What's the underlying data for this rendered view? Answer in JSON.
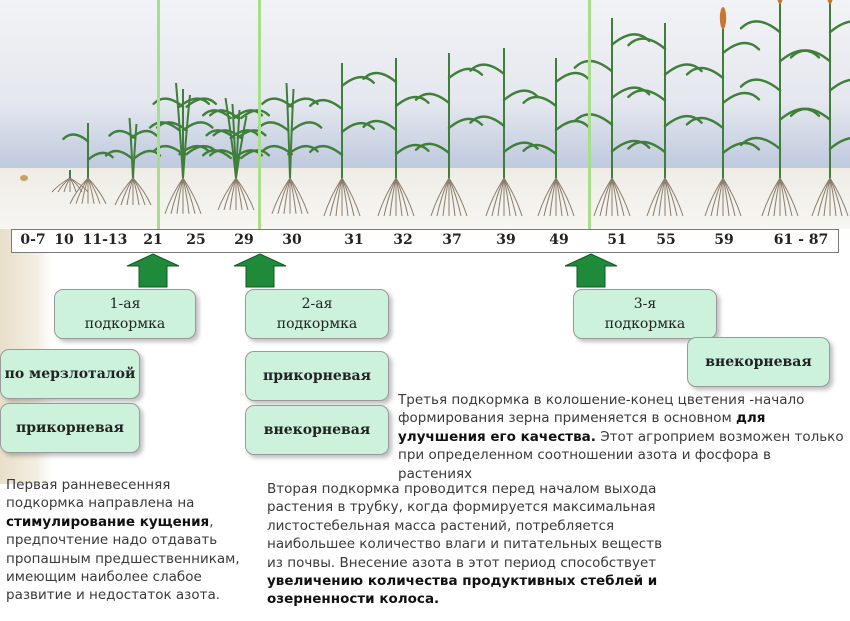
{
  "stages": [
    "0-7",
    "10",
    "11-13",
    "21",
    "25",
    "29",
    "30",
    "31",
    "32",
    "37",
    "39",
    "49",
    "51",
    "55",
    "59",
    "61 - 87"
  ],
  "feedings": {
    "first": {
      "title": "1-ая",
      "subtitle": "подкормка"
    },
    "second": {
      "title": "2-ая",
      "subtitle": "подкормка"
    },
    "third": {
      "title": "3-я",
      "subtitle": "подкормка"
    }
  },
  "methods": {
    "frozen_thawed": "по мерзлоталой",
    "root_1": "прикорневая",
    "root_2": "прикорневая",
    "foliar_2": "внекорневая",
    "foliar_3": "внекорневая"
  },
  "notes": {
    "first": {
      "p1": "Первая ранневесенняя подкормка направлена на ",
      "b1": "стимулирование кущения",
      "p2": ", предпочтение надо отдавать пропашным предшественникам, имеющим наиболее слабое развитие и недостаток азота."
    },
    "second": {
      "p1": "Вторая подкормка проводится перед началом выхода растения в трубку, когда формируется максимальная листостебельная масса растений, потребляется наибольшее количество влаги и питательных веществ из почвы. Внесение азота в этот период способствует ",
      "b1": "увеличению количества продуктивных стеблей и озерненности колоса."
    },
    "third": {
      "p1": "Третья подкормка в колошение-конец цветения -начало формирования зерна применяется в основном ",
      "b1": "для улучшения его качества.",
      "p2": " Этот агроприем возможен только при определенном соотношении азота и фосфора в растениях"
    }
  },
  "colors": {
    "box_fill": "#ccf2dc",
    "arrow": "#1f8a3a",
    "stage_divider": "#a6df8a",
    "plant_leaf": "#3f7f3a",
    "ear": "#c7772e"
  }
}
